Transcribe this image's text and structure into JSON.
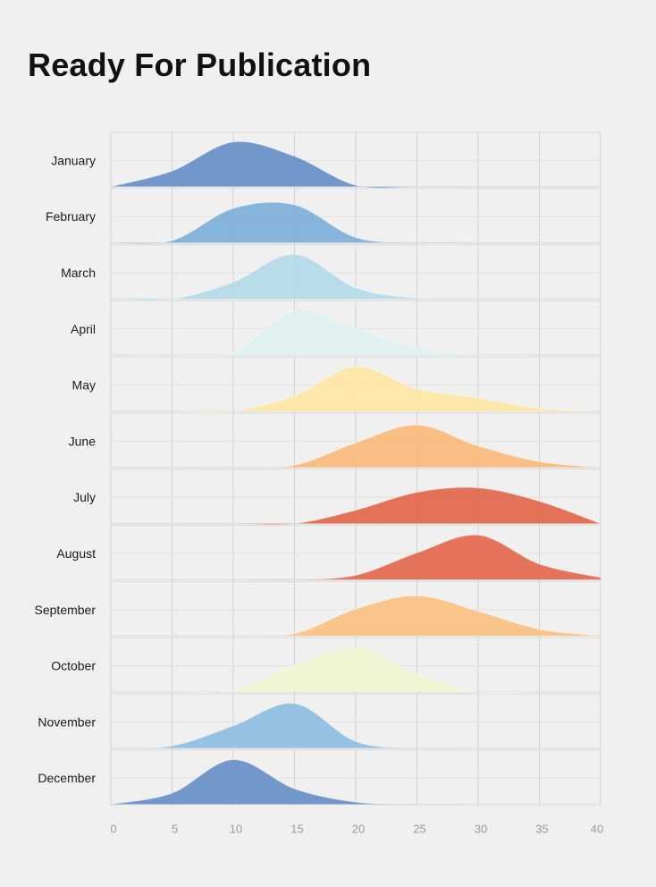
{
  "page": {
    "title": "Ready For Publication"
  },
  "chart_data": {
    "type": "area",
    "subtype": "ridgeline",
    "title": "Ready For Publication",
    "xlabel": "",
    "ylabel": "",
    "xlim": [
      0,
      40
    ],
    "x_ticks": [
      0,
      5,
      10,
      15,
      20,
      25,
      30,
      35,
      40
    ],
    "grid": true,
    "legend": "none",
    "x": [
      0,
      5,
      10,
      15,
      20,
      25,
      30,
      35,
      40
    ],
    "series": [
      {
        "name": "January",
        "color": "#6a92c8",
        "values": [
          0.0,
          0.35,
          1.0,
          0.68,
          0.03,
          0.0,
          0.0,
          0.0,
          0.0
        ]
      },
      {
        "name": "February",
        "color": "#7fb0d8",
        "values": [
          0.0,
          0.05,
          0.77,
          0.85,
          0.12,
          0.0,
          0.0,
          0.0,
          0.0
        ]
      },
      {
        "name": "March",
        "color": "#b5daea",
        "values": [
          0.0,
          0.0,
          0.38,
          1.0,
          0.25,
          0.02,
          0.0,
          0.0,
          0.0
        ]
      },
      {
        "name": "April",
        "color": "#def0f0",
        "values": [
          0.0,
          0.0,
          0.05,
          1.0,
          0.6,
          0.18,
          0.0,
          0.0,
          0.0
        ]
      },
      {
        "name": "May",
        "color": "#fde6a7",
        "values": [
          0.0,
          0.0,
          0.0,
          0.35,
          1.0,
          0.5,
          0.3,
          0.07,
          0.0
        ]
      },
      {
        "name": "June",
        "color": "#f8bb7c",
        "values": [
          0.0,
          0.0,
          0.0,
          0.05,
          0.55,
          0.95,
          0.48,
          0.13,
          0.0
        ]
      },
      {
        "name": "July",
        "color": "#e36a4f",
        "values": [
          0.0,
          0.0,
          0.0,
          0.0,
          0.3,
          0.7,
          0.8,
          0.5,
          0.0
        ]
      },
      {
        "name": "August",
        "color": "#e46b52",
        "values": [
          0.0,
          0.0,
          0.0,
          0.0,
          0.1,
          0.6,
          1.0,
          0.35,
          0.05
        ]
      },
      {
        "name": "September",
        "color": "#fac284",
        "values": [
          0.0,
          0.0,
          0.0,
          0.05,
          0.6,
          0.9,
          0.55,
          0.15,
          0.0
        ]
      },
      {
        "name": "October",
        "color": "#f0f4d2",
        "values": [
          0.0,
          0.0,
          0.05,
          0.6,
          1.0,
          0.4,
          0.0,
          0.0,
          0.0
        ]
      },
      {
        "name": "November",
        "color": "#8fbfe0",
        "values": [
          0.0,
          0.05,
          0.5,
          1.0,
          0.15,
          0.0,
          0.0,
          0.0,
          0.0
        ]
      },
      {
        "name": "December",
        "color": "#6a92c8",
        "values": [
          0.0,
          0.25,
          1.0,
          0.35,
          0.05,
          0.0,
          0.0,
          0.0,
          0.0
        ]
      }
    ]
  }
}
